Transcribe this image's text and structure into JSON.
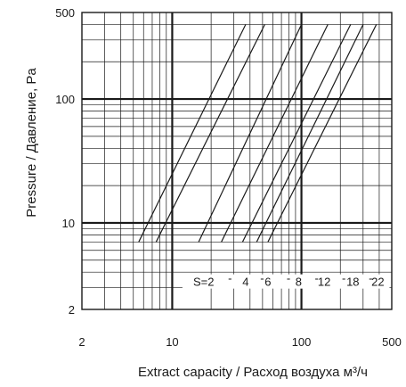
{
  "chart_data": {
    "type": "line",
    "title": "",
    "xlabel": "Extract capacity / Расход воздуха м³/ч",
    "ylabel": "Pressure / Давление, Pa",
    "xscale": "log",
    "yscale": "log",
    "xlim": [
      2,
      500
    ],
    "ylim": [
      2,
      500
    ],
    "grid": true,
    "x_ticks": [
      "2",
      "10",
      "100",
      "500"
    ],
    "y_ticks": [
      "500",
      "100",
      "10",
      "2"
    ],
    "series_label_prefix": "S=",
    "series": [
      {
        "name": "2",
        "x": [
          5.5,
          37
        ],
        "y": [
          7,
          400
        ]
      },
      {
        "name": "4",
        "x": [
          7.5,
          52
        ],
        "y": [
          7,
          400
        ]
      },
      {
        "name": "6",
        "x": [
          16,
          100
        ],
        "y": [
          7,
          400
        ]
      },
      {
        "name": "8",
        "x": [
          24,
          160
        ],
        "y": [
          7,
          400
        ]
      },
      {
        "name": "12",
        "x": [
          35,
          240
        ],
        "y": [
          7,
          400
        ]
      },
      {
        "name": "18",
        "x": [
          45,
          300
        ],
        "y": [
          7,
          400
        ]
      },
      {
        "name": "22",
        "x": [
          55,
          380
        ],
        "y": [
          7,
          400
        ]
      }
    ],
    "legend_inline": [
      "S=2",
      "4",
      "6",
      "8",
      "12",
      "18",
      "22"
    ]
  }
}
